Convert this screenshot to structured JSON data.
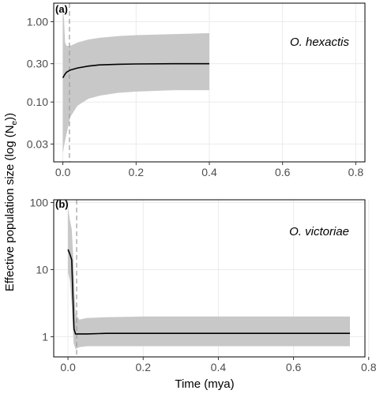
{
  "figure": {
    "ylabel_main": "Effective population size (log (N",
    "ylabel_sub": "e",
    "ylabel_close": "))",
    "xlabel": "Time (mya)"
  },
  "chart_data": [
    {
      "type": "line",
      "panel_label": "(a)",
      "species": "O. hexactis",
      "x_scale": "linear",
      "y_scale": "log",
      "xlim": [
        -0.025,
        0.825
      ],
      "ylim": [
        0.018,
        1.7
      ],
      "xticks": [
        0.0,
        0.2,
        0.4,
        0.6,
        0.8
      ],
      "xtick_labels": [
        "0.0",
        "0.2",
        "0.4",
        "0.6",
        "0.8"
      ],
      "yticks": [
        0.03,
        0.1,
        0.3,
        1.0
      ],
      "ytick_labels": [
        "0.03",
        "0.10",
        "0.30",
        "1.00"
      ],
      "grid": true,
      "vline_x": 0.018,
      "median": {
        "x": [
          0.0,
          0.005,
          0.01,
          0.02,
          0.04,
          0.07,
          0.1,
          0.15,
          0.2,
          0.3,
          0.4
        ],
        "y": [
          0.2,
          0.22,
          0.235,
          0.25,
          0.265,
          0.28,
          0.29,
          0.295,
          0.298,
          0.3,
          0.3
        ]
      },
      "hpd_upper": {
        "x": [
          0.0,
          0.003,
          0.006,
          0.01,
          0.015,
          0.02,
          0.04,
          0.07,
          0.1,
          0.15,
          0.2,
          0.3,
          0.4
        ],
        "y": [
          1.4,
          1.1,
          0.55,
          0.5,
          0.5,
          0.5,
          0.55,
          0.6,
          0.63,
          0.66,
          0.68,
          0.7,
          0.72
        ]
      },
      "hpd_lower": {
        "x": [
          0.0,
          0.003,
          0.006,
          0.01,
          0.015,
          0.02,
          0.04,
          0.07,
          0.1,
          0.15,
          0.2,
          0.3,
          0.4
        ],
        "y": [
          0.023,
          0.028,
          0.033,
          0.04,
          0.05,
          0.065,
          0.09,
          0.11,
          0.12,
          0.13,
          0.135,
          0.14,
          0.14
        ]
      }
    },
    {
      "type": "line",
      "panel_label": "(b)",
      "species": "O. victoriae",
      "x_scale": "linear",
      "y_scale": "log",
      "xlim": [
        -0.038,
        0.79
      ],
      "ylim": [
        0.5,
        110
      ],
      "xticks": [
        0.0,
        0.2,
        0.4,
        0.6,
        0.8
      ],
      "xtick_labels": [
        "0.0",
        "0.2",
        "0.4",
        "0.6",
        "0.8"
      ],
      "yticks": [
        1,
        10,
        100
      ],
      "ytick_labels": [
        "1",
        "10",
        "100"
      ],
      "grid": true,
      "vline_x": 0.023,
      "median": {
        "x": [
          0.0,
          0.005,
          0.01,
          0.013,
          0.016,
          0.02,
          0.03,
          0.05,
          0.1,
          0.2,
          0.4,
          0.6,
          0.75
        ],
        "y": [
          20,
          17,
          14,
          4,
          1.3,
          1.1,
          1.1,
          1.1,
          1.12,
          1.12,
          1.12,
          1.12,
          1.12
        ]
      },
      "hpd_upper": {
        "x": [
          0.0,
          0.005,
          0.01,
          0.015,
          0.02,
          0.03,
          0.05,
          0.1,
          0.2,
          0.4,
          0.6,
          0.75
        ],
        "y": [
          85,
          55,
          40,
          12,
          2.2,
          1.8,
          1.9,
          1.95,
          2.0,
          2.0,
          2.0,
          2.0
        ]
      },
      "hpd_lower": {
        "x": [
          0.0,
          0.005,
          0.01,
          0.015,
          0.02,
          0.03,
          0.05,
          0.1,
          0.2,
          0.4,
          0.6,
          0.75
        ],
        "y": [
          9,
          7,
          3,
          0.8,
          0.65,
          0.7,
          0.72,
          0.72,
          0.72,
          0.72,
          0.72,
          0.72
        ]
      }
    }
  ],
  "colors": {
    "band": "#c8c8c8",
    "median": "#000000",
    "vline": "#9a9a9a",
    "grid": "#ebebeb",
    "frame": "#000000",
    "tick": "#333333",
    "tick_text": "#4d4d4d"
  }
}
